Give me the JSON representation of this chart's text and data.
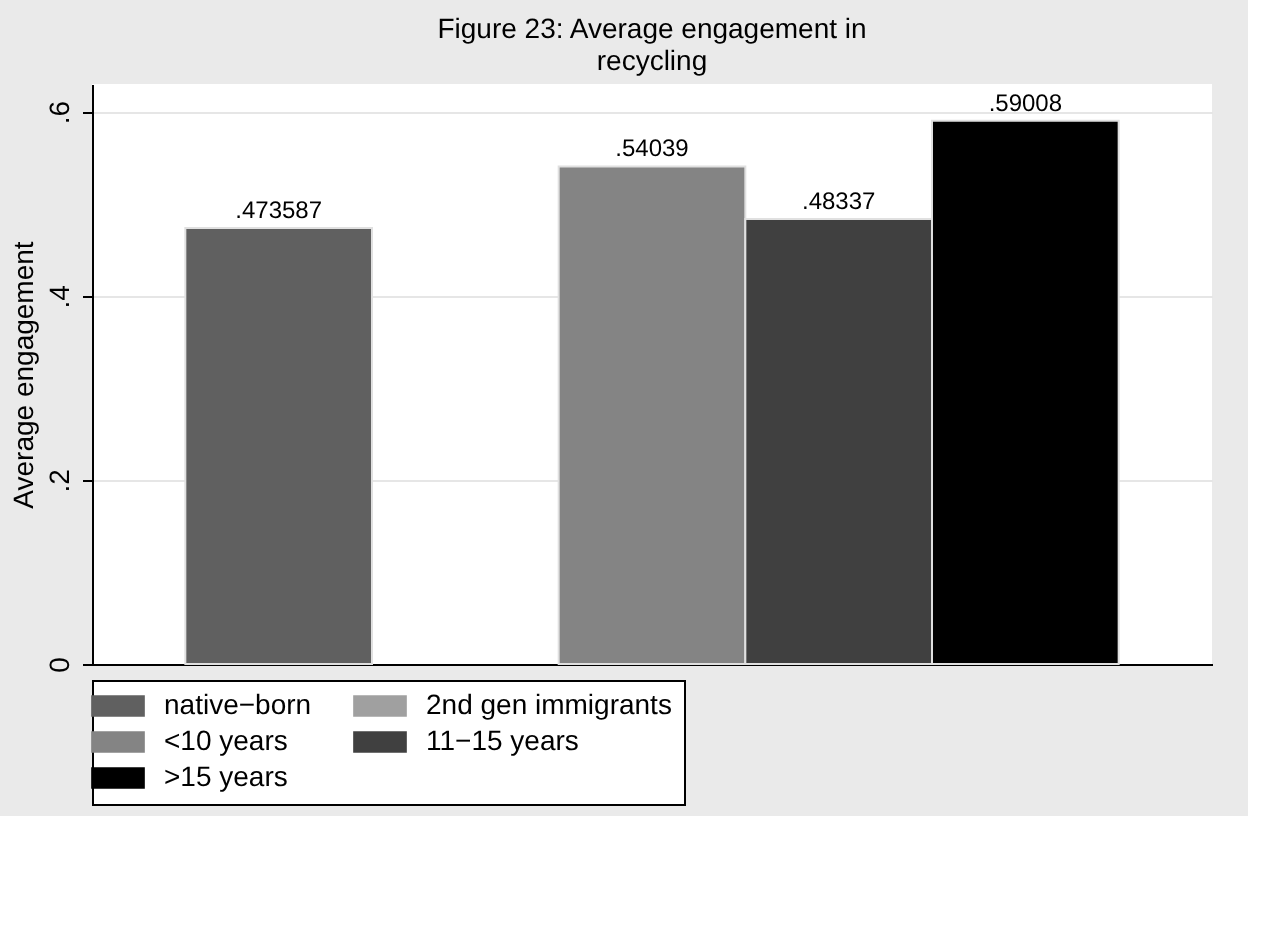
{
  "chart_data": {
    "type": "bar",
    "title": "Figure 23: Average engagement in recycling",
    "ylabel": "Average engagement",
    "categories": [
      null,
      null,
      null,
      null,
      null
    ],
    "series": [
      {
        "name": "native−born",
        "color": "#606060",
        "values": [
          0.473587,
          null,
          null,
          null,
          null
        ],
        "value_labels": [
          ".473587",
          null,
          null,
          null,
          null
        ]
      },
      {
        "name": "2nd gen immigrants",
        "color": "#a0a0a0",
        "values": [
          null,
          null,
          null,
          null,
          null
        ],
        "value_labels": [
          null,
          null,
          null,
          null,
          null
        ]
      },
      {
        "name": "<10 years",
        "color": "#848484",
        "values": [
          null,
          null,
          0.54039,
          null,
          null
        ],
        "value_labels": [
          null,
          null,
          ".54039",
          null,
          null
        ]
      },
      {
        "name": "11−15 years",
        "color": "#404040",
        "values": [
          null,
          null,
          null,
          0.48337,
          null
        ],
        "value_labels": [
          null,
          null,
          null,
          ".48337",
          null
        ]
      },
      {
        "name": ">15 years",
        "color": "#000000",
        "values": [
          null,
          null,
          null,
          null,
          0.59008
        ],
        "value_labels": [
          null,
          null,
          null,
          null,
          ".59008"
        ]
      }
    ],
    "ylim": [
      0,
      0.63
    ],
    "yticks": [
      {
        "value": 0,
        "label": "0"
      },
      {
        "value": 0.2,
        "label": ".2"
      },
      {
        "value": 0.4,
        "label": ".4"
      },
      {
        "value": 0.6,
        "label": ".6"
      }
    ],
    "grid": "y",
    "legend": "bottom"
  }
}
